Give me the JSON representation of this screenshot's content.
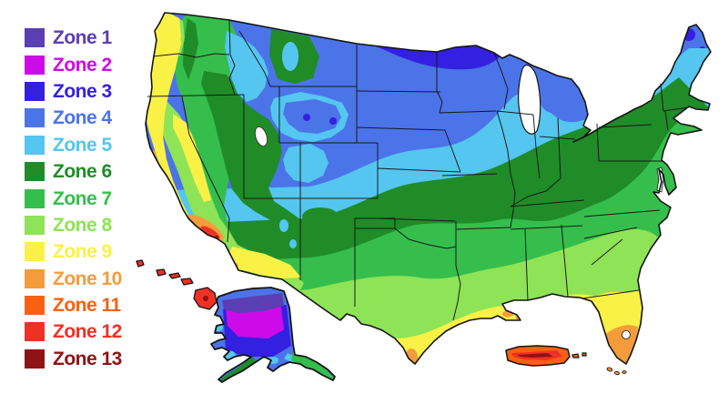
{
  "legend": {
    "items": [
      {
        "id": "zone1",
        "label": "Zone 1",
        "color": "#5B3EB4"
      },
      {
        "id": "zone2",
        "label": "Zone 2",
        "color": "#CD0BE8"
      },
      {
        "id": "zone3",
        "label": "Zone 3",
        "color": "#3420E0"
      },
      {
        "id": "zone4",
        "label": "Zone 4",
        "color": "#4B74E8"
      },
      {
        "id": "zone5",
        "label": "Zone 5",
        "color": "#54C6F0"
      },
      {
        "id": "zone6",
        "label": "Zone 6",
        "color": "#1F8C28"
      },
      {
        "id": "zone7",
        "label": "Zone 7",
        "color": "#35BE4C"
      },
      {
        "id": "zone8",
        "label": "Zone 8",
        "color": "#8FE356"
      },
      {
        "id": "zone9",
        "label": "Zone 9",
        "color": "#FAF146"
      },
      {
        "id": "zone10",
        "label": "Zone 10",
        "color": "#F49C3C"
      },
      {
        "id": "zone11",
        "label": "Zone 11",
        "color": "#F96011"
      },
      {
        "id": "zone12",
        "label": "Zone 12",
        "color": "#EF3125"
      },
      {
        "id": "zone13",
        "label": "Zone 13",
        "color": "#8F1313"
      }
    ]
  },
  "map": {
    "water_color": "#ffffff",
    "border_color": "#141414",
    "insets": [
      "alaska",
      "hawaii",
      "puerto-rico"
    ]
  }
}
